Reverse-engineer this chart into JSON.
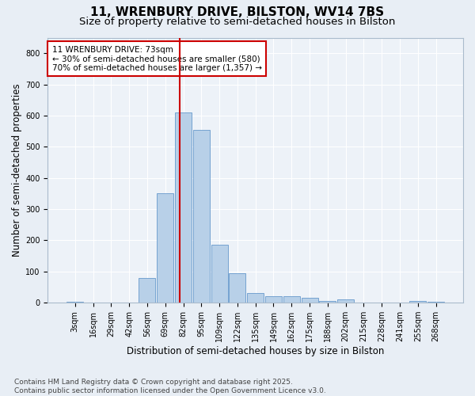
{
  "title1": "11, WRENBURY DRIVE, BILSTON, WV14 7BS",
  "title2": "Size of property relative to semi-detached houses in Bilston",
  "xlabel": "Distribution of semi-detached houses by size in Bilston",
  "ylabel": "Number of semi-detached properties",
  "footnote": "Contains HM Land Registry data © Crown copyright and database right 2025.\nContains public sector information licensed under the Open Government Licence v3.0.",
  "bar_labels": [
    "3sqm",
    "16sqm",
    "29sqm",
    "42sqm",
    "56sqm",
    "69sqm",
    "82sqm",
    "95sqm",
    "109sqm",
    "122sqm",
    "135sqm",
    "149sqm",
    "162sqm",
    "175sqm",
    "188sqm",
    "202sqm",
    "215sqm",
    "228sqm",
    "241sqm",
    "255sqm",
    "268sqm"
  ],
  "bar_values": [
    2,
    0,
    0,
    0,
    80,
    350,
    610,
    555,
    185,
    95,
    30,
    22,
    20,
    15,
    5,
    10,
    0,
    0,
    0,
    5,
    2
  ],
  "bar_color": "#b8d0e8",
  "bar_edge_color": "#6699cc",
  "highlight_line_color": "#cc0000",
  "annotation_text": "11 WRENBURY DRIVE: 73sqm\n← 30% of semi-detached houses are smaller (580)\n70% of semi-detached houses are larger (1,357) →",
  "annotation_box_color": "#cc0000",
  "ylim": [
    0,
    850
  ],
  "yticks": [
    0,
    100,
    200,
    300,
    400,
    500,
    600,
    700,
    800
  ],
  "bg_color": "#e8eef5",
  "plot_bg_color": "#edf2f8",
  "grid_color": "#ffffff",
  "title_fontsize": 11,
  "subtitle_fontsize": 9.5,
  "axis_label_fontsize": 8.5,
  "tick_fontsize": 7,
  "footnote_fontsize": 6.5
}
